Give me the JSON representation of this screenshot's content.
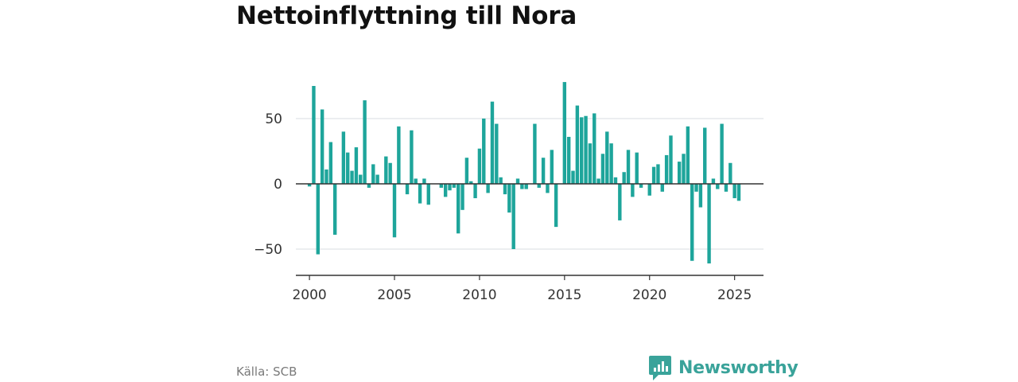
{
  "chart_data": {
    "type": "bar",
    "title": "Nettoinflyttning till Nora",
    "xlabel": "",
    "ylabel": "",
    "ylim": [
      -70,
      95
    ],
    "y_ticks": [
      50,
      0,
      -50
    ],
    "y_tick_labels": [
      "50",
      "0",
      "−50"
    ],
    "xlim": [
      1999.2,
      2026.7
    ],
    "x_ticks": [
      2000,
      2005,
      2010,
      2015,
      2020,
      2025
    ],
    "x_tick_labels": [
      "2000",
      "2005",
      "2010",
      "2015",
      "2020",
      "2025"
    ],
    "grid": true,
    "bar_color": "#1ea59b",
    "x": [
      2000.0,
      2000.25,
      2000.5,
      2000.75,
      2001.0,
      2001.25,
      2001.5,
      2001.75,
      2002.0,
      2002.25,
      2002.5,
      2002.75,
      2003.0,
      2003.25,
      2003.5,
      2003.75,
      2004.0,
      2004.25,
      2004.5,
      2004.75,
      2005.0,
      2005.25,
      2005.5,
      2005.75,
      2006.0,
      2006.25,
      2006.5,
      2006.75,
      2007.0,
      2007.25,
      2007.5,
      2007.75,
      2008.0,
      2008.25,
      2008.5,
      2008.75,
      2009.0,
      2009.25,
      2009.5,
      2009.75,
      2010.0,
      2010.25,
      2010.5,
      2010.75,
      2011.0,
      2011.25,
      2011.5,
      2011.75,
      2012.0,
      2012.25,
      2012.5,
      2012.75,
      2013.0,
      2013.25,
      2013.5,
      2013.75,
      2014.0,
      2014.25,
      2014.5,
      2014.75,
      2015.0,
      2015.25,
      2015.5,
      2015.75,
      2016.0,
      2016.25,
      2016.5,
      2016.75,
      2017.0,
      2017.25,
      2017.5,
      2017.75,
      2018.0,
      2018.25,
      2018.5,
      2018.75,
      2019.0,
      2019.25,
      2019.5,
      2019.75,
      2020.0,
      2020.25,
      2020.5,
      2020.75,
      2021.0,
      2021.25,
      2021.5,
      2021.75,
      2022.0,
      2022.25,
      2022.5,
      2022.75,
      2023.0,
      2023.25,
      2023.5,
      2023.75,
      2024.0,
      2024.25,
      2024.5,
      2024.75,
      2025.0,
      2025.25
    ],
    "values": [
      -2,
      75,
      -54,
      57,
      11,
      32,
      -39,
      0,
      40,
      24,
      10,
      28,
      7,
      64,
      -3,
      15,
      7,
      0,
      21,
      16,
      -41,
      44,
      0,
      -8,
      41,
      4,
      -15,
      4,
      -16,
      0,
      0,
      -3,
      -10,
      -5,
      -3,
      -38,
      -20,
      20,
      2,
      -11,
      27,
      50,
      -7,
      63,
      46,
      5,
      -8,
      -22,
      -50,
      4,
      -4,
      -4,
      0,
      46,
      -3,
      20,
      -7,
      26,
      -33,
      0,
      78,
      36,
      10,
      60,
      51,
      52,
      31,
      54,
      4,
      23,
      40,
      31,
      5,
      -28,
      9,
      26,
      -10,
      24,
      -3,
      0,
      -9,
      13,
      15,
      -6,
      22,
      37,
      0,
      17,
      23,
      44,
      -59,
      -6,
      -18,
      43,
      -61,
      4,
      -4,
      46,
      -6,
      16,
      -11,
      -13
    ]
  },
  "footer": {
    "source": "Källa: SCB",
    "brand": "Newsworthy",
    "brand_color": "#3aa39a"
  }
}
